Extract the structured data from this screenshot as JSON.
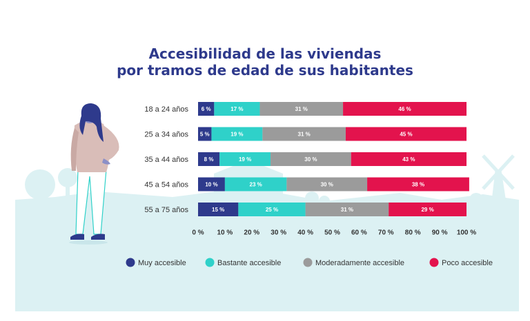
{
  "chart_data": {
    "type": "bar",
    "orientation": "horizontal",
    "stacked": true,
    "title_line1": "Accesibilidad de las viviendas",
    "title_line2": "por tramos de edad de sus habitantes",
    "categories": [
      "18 a 24 años",
      "25 a 34 años",
      "35 a 44 años",
      "45 a 54 años",
      "55 a 75 años"
    ],
    "series": [
      {
        "name": "Muy accesible",
        "color": "#2e3a8c",
        "values": [
          6,
          5,
          8,
          10,
          15
        ],
        "labels": [
          "6 %",
          "5 %",
          "8 %",
          "10 %",
          "15 %"
        ]
      },
      {
        "name": "Bastante accesible",
        "color": "#2fd1c9",
        "values": [
          17,
          19,
          19,
          23,
          25
        ],
        "labels": [
          "17 %",
          "19 %",
          "19 %",
          "23 %",
          "25 %"
        ]
      },
      {
        "name": "Moderadamente accesible",
        "color": "#9b9b9b",
        "values": [
          31,
          31,
          30,
          30,
          31
        ],
        "labels": [
          "31 %",
          "31 %",
          "30 %",
          "30 %",
          "31 %"
        ]
      },
      {
        "name": "Poco accesible",
        "color": "#e3134d",
        "values": [
          46,
          45,
          43,
          38,
          29
        ],
        "labels": [
          "46 %",
          "45 %",
          "43 %",
          "38 %",
          "29 %"
        ]
      }
    ],
    "xlim": [
      0,
      100
    ],
    "xticks": [
      0,
      10,
      20,
      30,
      40,
      50,
      60,
      70,
      80,
      90,
      100
    ],
    "xtick_labels": [
      "0 %",
      "10 %",
      "20 %",
      "30 %",
      "40 %",
      "50 %",
      "60 %",
      "70 %",
      "80 %",
      "90 %",
      "100 %"
    ],
    "legend_position": "bottom"
  },
  "colors": {
    "title": "#2e3a8c",
    "background_scene": "#dcf1f3",
    "text": "#333333"
  },
  "icons": [
    "woman-illustration",
    "landscape-silhouette",
    "windmill-silhouette"
  ]
}
